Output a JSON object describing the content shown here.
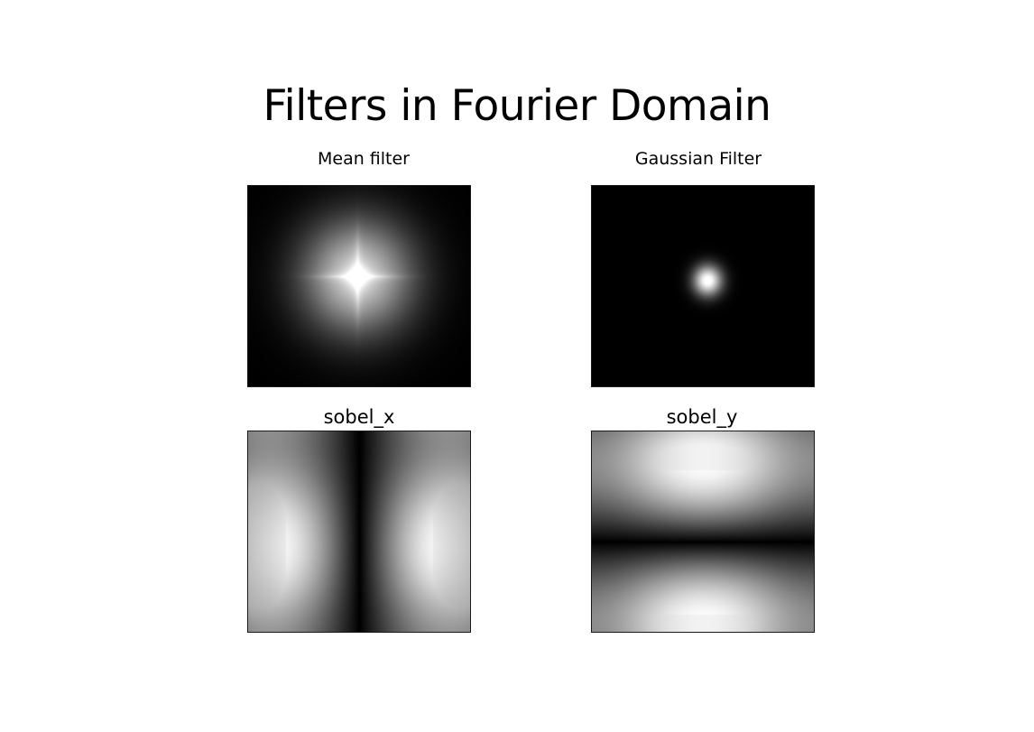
{
  "slide": {
    "title": "Filters in Fourier Domain"
  },
  "panels": [
    {
      "id": "mean",
      "title": "Mean filter"
    },
    {
      "id": "gauss",
      "title": "Gaussian Filter"
    },
    {
      "id": "sobel_x",
      "title": "sobel_x"
    },
    {
      "id": "sobel_y",
      "title": "sobel_y"
    }
  ]
}
